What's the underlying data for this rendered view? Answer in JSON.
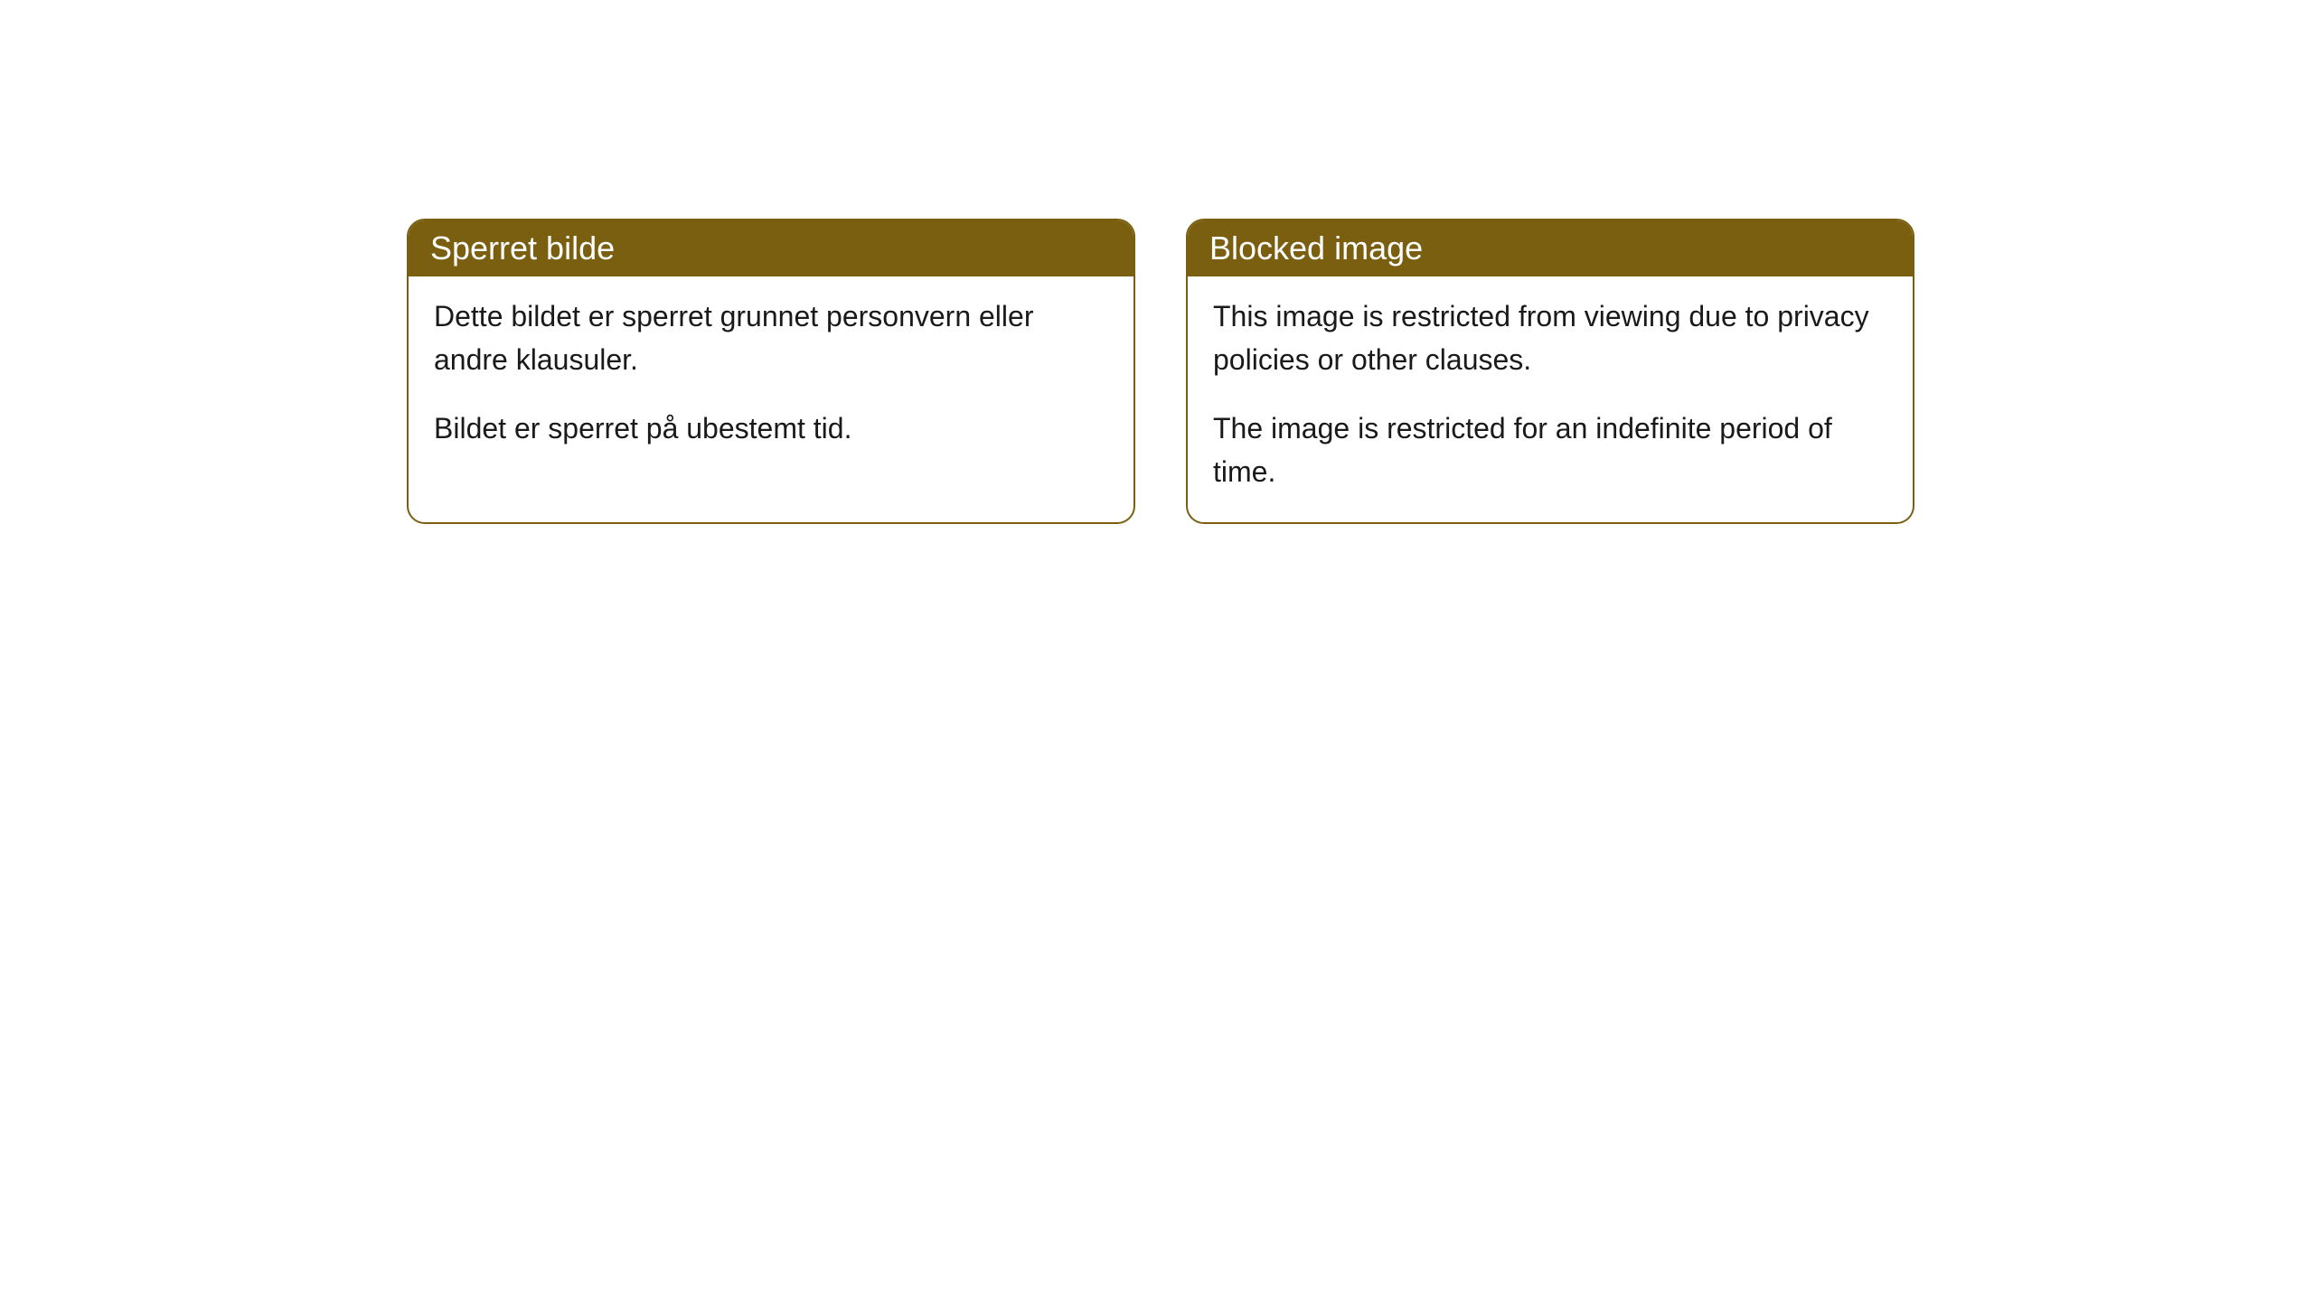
{
  "cards": [
    {
      "title": "Sperret bilde",
      "paragraph1": "Dette bildet er sperret grunnet personvern eller andre klausuler.",
      "paragraph2": "Bildet er sperret på ubestemt tid."
    },
    {
      "title": "Blocked image",
      "paragraph1": "This image is restricted from viewing due to privacy policies or other clauses.",
      "paragraph2": "The image is restricted for an indefinite period of time."
    }
  ],
  "style": {
    "header_background": "#7a5f10",
    "header_text_color": "#ffffff",
    "card_border_color": "#7a5f10",
    "card_background": "#ffffff",
    "body_text_color": "#1a1a1a",
    "page_background": "#ffffff",
    "border_radius": 20,
    "header_fontsize": 36,
    "body_fontsize": 32
  }
}
